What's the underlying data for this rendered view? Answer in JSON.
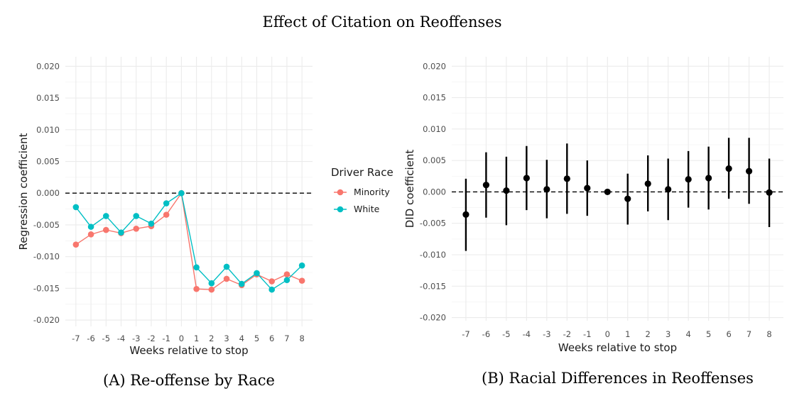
{
  "figure_title": "Effect of Citation on Reoffenses",
  "chart_data": [
    {
      "type": "line",
      "caption": "(A) Re-offense by Race",
      "xlabel": "Weeks relative to stop",
      "ylabel": "Regression coefficient",
      "x": [
        -7,
        -6,
        -5,
        -4,
        -3,
        -2,
        -1,
        0,
        1,
        2,
        3,
        4,
        5,
        6,
        7,
        8
      ],
      "x_ticks": [
        "-7",
        "-6",
        "-5",
        "-4",
        "-3",
        "-2",
        "-1",
        "0",
        "1",
        "2",
        "3",
        "4",
        "5",
        "6",
        "7",
        "8"
      ],
      "ylim": [
        -0.021,
        0.0215
      ],
      "y_ticks": [
        "0.020",
        "0.015",
        "0.010",
        "0.005",
        "0.000",
        "-0.005",
        "-0.010",
        "-0.015",
        "-0.020"
      ],
      "y_tick_values": [
        0.02,
        0.015,
        0.01,
        0.005,
        0.0,
        -0.005,
        -0.01,
        -0.015,
        -0.02
      ],
      "grid": true,
      "reference_line": 0,
      "legend": {
        "title": "Driver Race",
        "placement": "right",
        "entries": [
          "Minority",
          "White"
        ]
      },
      "series": [
        {
          "name": "Minority",
          "color": "#F8766D",
          "values": [
            -0.0081,
            -0.0065,
            -0.0058,
            -0.0063,
            -0.0056,
            -0.0052,
            -0.0034,
            0.0,
            -0.0151,
            -0.0152,
            -0.0135,
            -0.0145,
            -0.0128,
            -0.0139,
            -0.0128,
            -0.0138
          ]
        },
        {
          "name": "White",
          "color": "#00BFC4",
          "values": [
            -0.0022,
            -0.0053,
            -0.0036,
            -0.0062,
            -0.0036,
            -0.0048,
            -0.0016,
            0.0,
            -0.0117,
            -0.0142,
            -0.0116,
            -0.0143,
            -0.0126,
            -0.0152,
            -0.0137,
            -0.0114
          ]
        }
      ]
    },
    {
      "type": "scatter",
      "caption": "(B) Racial Differences in Reoffenses",
      "xlabel": "Weeks relative to stop",
      "ylabel": "DID coefficient",
      "x": [
        -7,
        -6,
        -5,
        -4,
        -3,
        -2,
        -1,
        0,
        1,
        2,
        3,
        4,
        5,
        6,
        7,
        8
      ],
      "x_ticks": [
        "-7",
        "-6",
        "-5",
        "-4",
        "-3",
        "-2",
        "-1",
        "0",
        "1",
        "2",
        "3",
        "4",
        "5",
        "6",
        "7",
        "8"
      ],
      "ylim": [
        -0.0205,
        0.0215
      ],
      "y_ticks": [
        "0.020",
        "0.015",
        "0.010",
        "0.005",
        "0.000",
        "-0.005",
        "-0.010",
        "-0.015",
        "-0.020"
      ],
      "y_tick_values": [
        0.02,
        0.015,
        0.01,
        0.005,
        0.0,
        -0.005,
        -0.01,
        -0.015,
        -0.02
      ],
      "grid": true,
      "reference_line": 0,
      "point_color": "#000000",
      "points": [
        {
          "x": -7,
          "y": -0.0036,
          "lo": -0.0094,
          "hi": 0.0021
        },
        {
          "x": -6,
          "y": 0.0011,
          "lo": -0.0041,
          "hi": 0.0063
        },
        {
          "x": -5,
          "y": 0.0002,
          "lo": -0.0053,
          "hi": 0.0056
        },
        {
          "x": -4,
          "y": 0.0022,
          "lo": -0.0029,
          "hi": 0.0073
        },
        {
          "x": -3,
          "y": 0.0004,
          "lo": -0.0042,
          "hi": 0.0051
        },
        {
          "x": -2,
          "y": 0.0021,
          "lo": -0.0035,
          "hi": 0.0077
        },
        {
          "x": -1,
          "y": 0.0006,
          "lo": -0.0038,
          "hi": 0.005
        },
        {
          "x": 0,
          "y": 0.0,
          "lo": 0.0,
          "hi": 0.0
        },
        {
          "x": 1,
          "y": -0.0011,
          "lo": -0.0052,
          "hi": 0.0029
        },
        {
          "x": 2,
          "y": 0.0013,
          "lo": -0.0031,
          "hi": 0.0058
        },
        {
          "x": 3,
          "y": 0.0004,
          "lo": -0.0045,
          "hi": 0.0053
        },
        {
          "x": 4,
          "y": 0.002,
          "lo": -0.0025,
          "hi": 0.0065
        },
        {
          "x": 5,
          "y": 0.0022,
          "lo": -0.0028,
          "hi": 0.0072
        },
        {
          "x": 6,
          "y": 0.0037,
          "lo": -0.0011,
          "hi": 0.0086
        },
        {
          "x": 7,
          "y": 0.0033,
          "lo": -0.0019,
          "hi": 0.0086
        },
        {
          "x": 8,
          "y": -0.0001,
          "lo": -0.0056,
          "hi": 0.0053
        }
      ]
    }
  ]
}
